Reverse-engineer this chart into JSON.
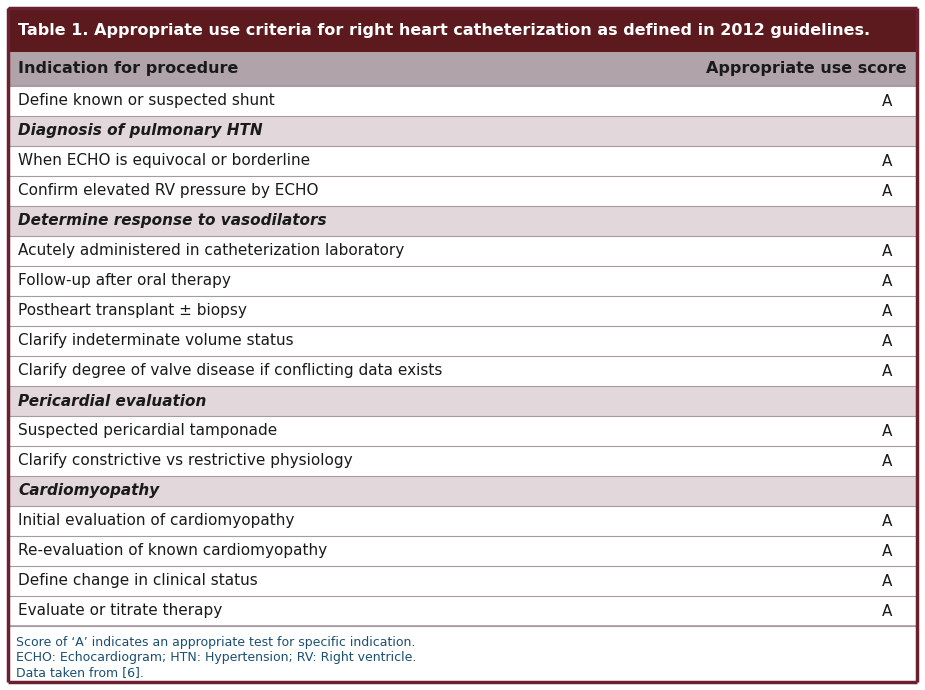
{
  "title": "Table 1. Appropriate use criteria for right heart catheterization as defined in 2012 guidelines.",
  "title_bg": "#5c1a1e",
  "title_color": "#ffffff",
  "header_row": [
    "Indication for procedure",
    "Appropriate use score"
  ],
  "header_bg": "#b0a4aa",
  "header_color": "#1a1a1a",
  "rows": [
    {
      "text": "Define known or suspected shunt",
      "score": "A",
      "is_subheader": false
    },
    {
      "text": "Diagnosis of pulmonary HTN",
      "score": "",
      "is_subheader": true
    },
    {
      "text": "When ECHO is equivocal or borderline",
      "score": "A",
      "is_subheader": false
    },
    {
      "text": "Confirm elevated RV pressure by ECHO",
      "score": "A",
      "is_subheader": false
    },
    {
      "text": "Determine response to vasodilators",
      "score": "",
      "is_subheader": true
    },
    {
      "text": "Acutely administered in catheterization laboratory",
      "score": "A",
      "is_subheader": false
    },
    {
      "text": "Follow-up after oral therapy",
      "score": "A",
      "is_subheader": false
    },
    {
      "text": "Postheart transplant ± biopsy",
      "score": "A",
      "is_subheader": false
    },
    {
      "text": "Clarify indeterminate volume status",
      "score": "A",
      "is_subheader": false
    },
    {
      "text": "Clarify degree of valve disease if conflicting data exists",
      "score": "A",
      "is_subheader": false
    },
    {
      "text": "Pericardial evaluation",
      "score": "",
      "is_subheader": true
    },
    {
      "text": "Suspected pericardial tamponade",
      "score": "A",
      "is_subheader": false
    },
    {
      "text": "Clarify constrictive vs restrictive physiology",
      "score": "A",
      "is_subheader": false
    },
    {
      "text": "Cardiomyopathy",
      "score": "",
      "is_subheader": true
    },
    {
      "text": "Initial evaluation of cardiomyopathy",
      "score": "A",
      "is_subheader": false
    },
    {
      "text": "Re-evaluation of known cardiomyopathy",
      "score": "A",
      "is_subheader": false
    },
    {
      "text": "Define change in clinical status",
      "score": "A",
      "is_subheader": false
    },
    {
      "text": "Evaluate or titrate therapy",
      "score": "A",
      "is_subheader": false
    }
  ],
  "footer_lines": [
    "Score of ‘A’ indicates an appropriate test for specific indication.",
    "ECHO: Echocardiogram; HTN: Hypertension; RV: Right ventricle.",
    "Data taken from [6]."
  ],
  "footer_color": "#1a4f72",
  "row_bg_white": "#ffffff",
  "row_bg_subheader": "#e2d8dc",
  "border_color": "#a89aa0",
  "outer_border_color": "#6b2030",
  "text_color": "#1a1a1a",
  "font_size": 11.0,
  "header_font_size": 11.5,
  "title_font_size": 11.5,
  "footer_font_size": 9.0,
  "fig_width": 9.25,
  "fig_height": 6.9,
  "dpi": 100
}
